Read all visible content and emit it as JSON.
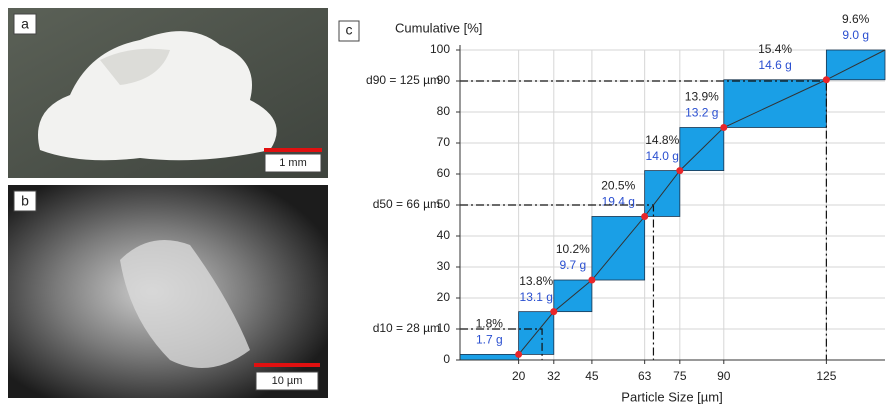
{
  "panels": [
    {
      "label": "a",
      "scale_bar": "1 mm"
    },
    {
      "label": "b",
      "scale_bar": "10 µm"
    }
  ],
  "chart_data": {
    "type": "histogram",
    "panel_label": "c",
    "y_label": "Cumulative [%]",
    "x_label": "Particle Size [µm]",
    "bins": [
      0,
      20,
      32,
      45,
      63,
      75,
      90,
      125,
      145
    ],
    "values": [
      1.8,
      13.8,
      10.2,
      20.5,
      14.8,
      13.9,
      15.4,
      9.6
    ],
    "value_labels": [
      "1.8%",
      "13.8%",
      "10.2%",
      "20.5%",
      "14.8%",
      "13.9%",
      "15.4%",
      "9.6%"
    ],
    "mass_labels": [
      "1.7 g",
      "13.1 g",
      "9.7 g",
      "19.4 g",
      "14.0 g",
      "13.2 g",
      "14.6 g",
      "9.0 g"
    ],
    "color": "#1a9fe6",
    "mass_color": "#2a4fd0",
    "cumulative": {
      "x": [
        20,
        32,
        45,
        63,
        75,
        90,
        125,
        145
      ],
      "values": [
        1.8,
        15.6,
        25.8,
        46.3,
        61.1,
        75,
        90.4,
        100
      ],
      "color": "#e8262a"
    },
    "annotations": [
      {
        "label": "d10 = 28 µm",
        "x": 28,
        "y": 10
      },
      {
        "label": "d50 = 66 µm",
        "x": 66,
        "y": 50
      },
      {
        "label": "d90 = 125 µm",
        "x": 125,
        "y": 90
      }
    ],
    "xlim": [
      0,
      145
    ],
    "ylim": [
      0,
      100
    ],
    "xticks": [
      20,
      32,
      45,
      63,
      75,
      90,
      125
    ],
    "yticks": [
      0,
      10,
      20,
      30,
      40,
      50,
      60,
      70,
      80,
      90,
      100
    ],
    "grid": true
  }
}
